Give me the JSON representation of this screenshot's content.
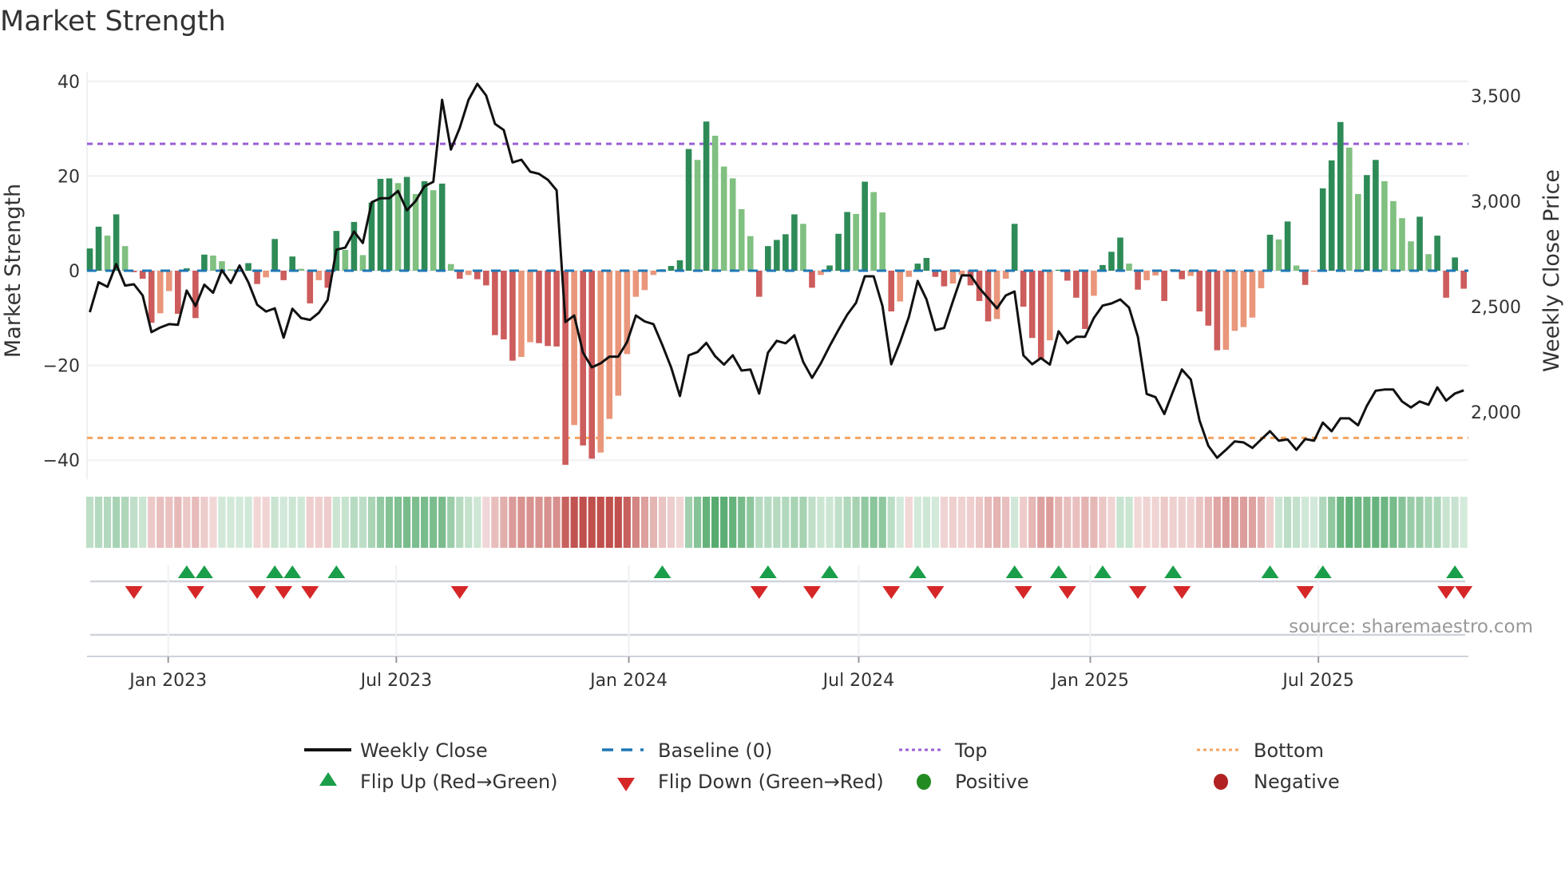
{
  "title": "Market Strength",
  "source": "source: sharemaestro.com",
  "colors": {
    "pos_rising": "#2e8b57",
    "pos_falling": "#80c080",
    "neg_falling": "#cd5c5c",
    "neg_rising": "#e9967a",
    "baseline": "#1f77b4",
    "top": "#9b5fd6",
    "bottom": "#f4a460",
    "price": "#111111",
    "flip_up": "#1a9e4a",
    "flip_down": "#d62728",
    "positive": "#228b22",
    "negative": "#b22222",
    "strip_green": "#3f9f5a",
    "strip_red": "#c0504d"
  },
  "legend": {
    "weekly_close": "Weekly Close",
    "baseline": "Baseline (0)",
    "top": "Top",
    "bottom": "Bottom",
    "flip_up": "Flip Up (Red→Green)",
    "flip_down": "Flip Down (Green→Red)",
    "positive": "Positive",
    "negative": "Negative"
  },
  "chart_data": {
    "type": "bar",
    "title": "Market Strength",
    "ylabel": "Market Strength",
    "y2label": "Weekly Close Price",
    "ylim": [
      -44,
      45
    ],
    "y2lim": [
      1700,
      3600
    ],
    "y_ticks": [
      {
        "v": 40,
        "label": "40"
      },
      {
        "v": 20,
        "label": "20"
      },
      {
        "v": 0,
        "label": "0"
      },
      {
        "v": -20,
        "label": "−20"
      },
      {
        "v": -40,
        "label": "−40"
      }
    ],
    "y2_ticks": [
      {
        "v": 3500,
        "label": "3,500"
      },
      {
        "v": 3000,
        "label": "3,000"
      },
      {
        "v": 2500,
        "label": "2,500"
      },
      {
        "v": 2000,
        "label": "2,000"
      }
    ],
    "x_ticks": [
      {
        "week": 8.9,
        "label": "Jan 2023"
      },
      {
        "week": 34.8,
        "label": "Jul 2023"
      },
      {
        "week": 61.2,
        "label": "Jan 2024"
      },
      {
        "week": 87.3,
        "label": "Jul 2024"
      },
      {
        "week": 113.6,
        "label": "Jan 2025"
      },
      {
        "week": 139.5,
        "label": "Jul 2025"
      }
    ],
    "top_level": 26.8,
    "bottom_level": -35.3,
    "baseline": 0,
    "strength": [
      4.7,
      9.3,
      7.4,
      11.9,
      5.2,
      -0.3,
      -1.7,
      -11,
      -9,
      -4.3,
      -9.1,
      0.5,
      -10,
      3.4,
      3.2,
      2.0,
      0.3,
      0.2,
      1.6,
      -2.8,
      -1.4,
      6.7,
      -2,
      3.0,
      0.4,
      -6.9,
      -2,
      -3.6,
      8.4,
      4.4,
      10.3,
      3.3,
      14.4,
      19.4,
      19.5,
      18.5,
      19.8,
      16.2,
      18.9,
      17,
      18.4,
      1.4,
      -1.7,
      -0.9,
      -1.8,
      -3.1,
      -13.6,
      -14.5,
      -19,
      -18.2,
      -15.1,
      -15.3,
      -15.9,
      -16.0,
      -41,
      -32.6,
      -36.9,
      -39.7,
      -38.4,
      -31.3,
      -26.4,
      -17.6,
      -5.5,
      -4.1,
      -0.9,
      0.3,
      1.0,
      2.2,
      25.7,
      23.4,
      31.5,
      28.5,
      22,
      19.5,
      13,
      7.3,
      -5.5,
      5.2,
      6.5,
      7.7,
      11.9,
      9.9,
      -3.6,
      -0.9,
      1.1,
      7.8,
      12.4,
      12.0,
      18.8,
      16.6,
      12.3,
      -8.6,
      -6.5,
      -1.3,
      1.5,
      2.7,
      -1.3,
      -3.3,
      -2.7,
      -0.9,
      -3.1,
      -6.4,
      -10.7,
      -10.2,
      -1.7,
      9.9,
      -7.6,
      -14.2,
      -18.8,
      -14.7,
      0.2,
      -2.1,
      -5.7,
      -12.3,
      -5.3,
      1.2,
      4.0,
      7.0,
      1.5,
      -4,
      -2,
      -1,
      -6.4,
      0.3,
      -1.8,
      -1.1,
      -8.6,
      -11.6,
      -16.8,
      -16.7,
      -12.7,
      -11.9,
      -9.9,
      -3.7,
      7.6,
      6.6,
      10.4,
      1.1,
      -3,
      -0.2,
      17.4,
      23.3,
      31.4,
      26,
      16.2,
      20.2,
      23.4,
      18.9,
      14.7,
      11.1,
      6.2,
      11.4,
      3.5,
      7.4,
      -5.7,
      2.8,
      -3.8
    ],
    "weekly_close": [
      2474,
      2616,
      2594,
      2702,
      2600,
      2606,
      2553,
      2379,
      2401,
      2417,
      2414,
      2576,
      2503,
      2604,
      2566,
      2673,
      2612,
      2695,
      2616,
      2509,
      2477,
      2492,
      2353,
      2490,
      2446,
      2437,
      2471,
      2532,
      2770,
      2780,
      2856,
      2802,
      2995,
      3014,
      3014,
      3049,
      2957,
      3001,
      3071,
      3092,
      3481,
      3245,
      3348,
      3481,
      3557,
      3502,
      3367,
      3338,
      3184,
      3197,
      3140,
      3130,
      3102,
      3052,
      2427,
      2458,
      2282,
      2212,
      2231,
      2263,
      2263,
      2332,
      2458,
      2430,
      2417,
      2319,
      2212,
      2076,
      2269,
      2285,
      2328,
      2265,
      2225,
      2269,
      2197,
      2202,
      2088,
      2282,
      2338,
      2326,
      2364,
      2238,
      2162,
      2231,
      2313,
      2389,
      2462,
      2518,
      2644,
      2644,
      2503,
      2227,
      2332,
      2452,
      2622,
      2535,
      2389,
      2399,
      2525,
      2648,
      2648,
      2588,
      2540,
      2492,
      2553,
      2572,
      2269,
      2227,
      2256,
      2225,
      2383,
      2326,
      2357,
      2357,
      2446,
      2505,
      2515,
      2534,
      2496,
      2357,
      2086,
      2071,
      1991,
      2099,
      2202,
      2155,
      1960,
      1840,
      1783,
      1821,
      1861,
      1856,
      1830,
      1870,
      1909,
      1864,
      1870,
      1821,
      1872,
      1864,
      1950,
      1909,
      1970,
      1970,
      1937,
      2029,
      2101,
      2107,
      2107,
      2050,
      2022,
      2050,
      2035,
      2117,
      2054,
      2088,
      2103
    ],
    "flip_up_weeks": [
      11,
      13,
      21,
      23,
      28,
      65,
      77,
      84,
      94,
      105,
      110,
      115,
      123,
      134,
      140,
      155
    ],
    "flip_down_weeks": [
      5,
      12,
      19,
      22,
      25,
      42,
      76,
      82,
      91,
      96,
      106,
      111,
      119,
      124,
      138,
      154,
      156
    ]
  }
}
